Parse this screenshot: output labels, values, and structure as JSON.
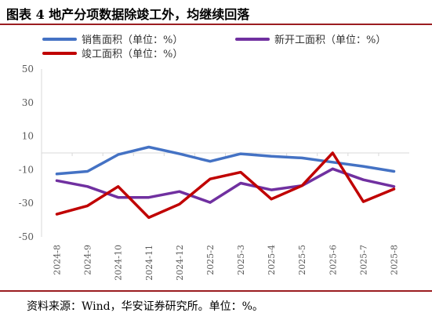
{
  "header": {
    "title": "图表 4 地产分项数据除竣工外，均继续回落"
  },
  "footer": {
    "source": "资料来源：Wind，华安证券研究所。单位：%。"
  },
  "chart_data": {
    "type": "line",
    "x": [
      "2024-8",
      "2024-9",
      "2024-10",
      "2024-11",
      "2024-12",
      "2025-2",
      "2025-3",
      "2025-4",
      "2025-5",
      "2025-6",
      "2025-7",
      "2025-8"
    ],
    "ylim": [
      -50,
      50
    ],
    "yticks": [
      50,
      30,
      10,
      -10,
      -30,
      -50
    ],
    "grid": false,
    "legend_position": "top",
    "series": [
      {
        "name": "销售面积（单位：%）",
        "color": "#4472c4",
        "values": [
          -12.5,
          -11.0,
          -1.0,
          3.5,
          -0.5,
          -5.0,
          -0.5,
          -2.0,
          -3.0,
          -5.5,
          -8.0,
          -11.0
        ]
      },
      {
        "name": "新开工面积（单位：%）",
        "color": "#7030a0",
        "values": [
          -16.5,
          -20.0,
          -26.5,
          -26.5,
          -23.0,
          -29.5,
          -18.0,
          -22.0,
          -19.5,
          -9.5,
          -16.0,
          -20.0
        ]
      },
      {
        "name": "竣工面积（单位：%）",
        "color": "#c00000",
        "values": [
          -36.5,
          -31.5,
          -20.0,
          -38.5,
          -30.5,
          -15.5,
          -11.5,
          -27.5,
          -19.5,
          0.0,
          -29.0,
          -21.5
        ]
      }
    ]
  }
}
